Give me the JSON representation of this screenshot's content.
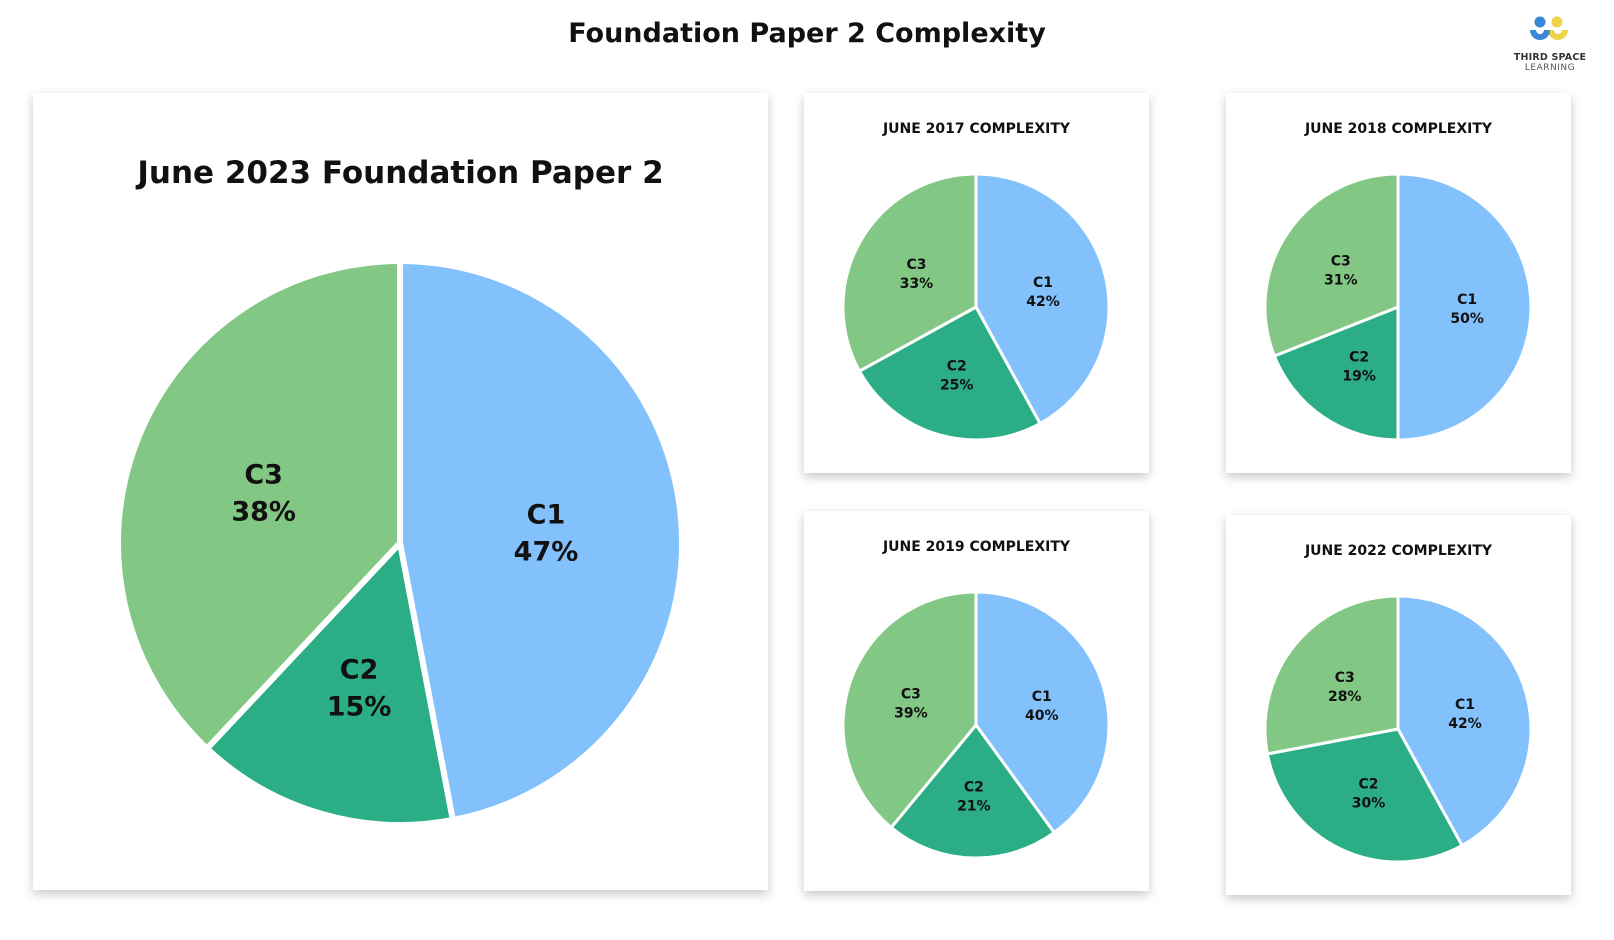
{
  "header": {
    "title": "Foundation Paper 2 Complexity"
  },
  "logo": {
    "line1": "THIRD SPACE",
    "line2": "LEARNING"
  },
  "colors": {
    "C1": "#82c1fc",
    "C2": "#2bae86",
    "C3": "#82c784",
    "divider": "#ffffff"
  },
  "chart_data": [
    {
      "type": "pie",
      "title": "June 2023 Foundation Paper 2",
      "categories": [
        "C1",
        "C2",
        "C3"
      ],
      "values": [
        47,
        15,
        38
      ],
      "labels": [
        "47%",
        "15%",
        "38%"
      ]
    },
    {
      "type": "pie",
      "title": "JUNE 2017 COMPLEXITY",
      "categories": [
        "C1",
        "C2",
        "C3"
      ],
      "values": [
        42,
        25,
        33
      ],
      "labels": [
        "42%",
        "25%",
        "33%"
      ]
    },
    {
      "type": "pie",
      "title": "JUNE 2018 COMPLEXITY",
      "categories": [
        "C1",
        "C2",
        "C3"
      ],
      "values": [
        50,
        19,
        31
      ],
      "labels": [
        "50%",
        "19%",
        "31%"
      ]
    },
    {
      "type": "pie",
      "title": "JUNE 2019 COMPLEXITY",
      "categories": [
        "C1",
        "C2",
        "C3"
      ],
      "values": [
        40,
        21,
        39
      ],
      "labels": [
        "40%",
        "21%",
        "39%"
      ]
    },
    {
      "type": "pie",
      "title": "JUNE 2022 COMPLEXITY",
      "categories": [
        "C1",
        "C2",
        "C3"
      ],
      "values": [
        42,
        30,
        28
      ],
      "labels": [
        "42%",
        "30%",
        "28%"
      ]
    }
  ]
}
